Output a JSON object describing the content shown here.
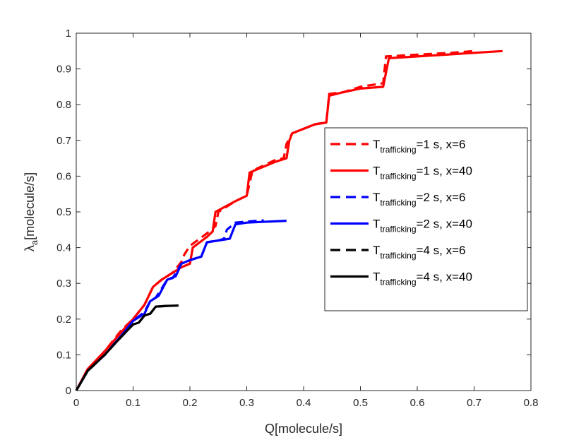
{
  "chart_data": {
    "type": "line",
    "xlabel": "Q[molecule/s]",
    "ylabel": {
      "symbol": "λ",
      "sub": "a",
      "unit": "[molecule/s]"
    },
    "xlim": [
      0,
      0.8
    ],
    "ylim": [
      0,
      1
    ],
    "xticks": [
      "0",
      "0.1",
      "0.2",
      "0.3",
      "0.4",
      "0.5",
      "0.6",
      "0.7",
      "0.8"
    ],
    "yticks": [
      "0",
      "0.1",
      "0.2",
      "0.3",
      "0.4",
      "0.5",
      "0.6",
      "0.7",
      "0.8",
      "0.9",
      "1"
    ],
    "grid": false,
    "legend_position": "right",
    "series": [
      {
        "name": "T_trafficking=1 s, x=6",
        "legend": {
          "main": "T",
          "sub": "trafficking",
          "rest": "=1 s, x=6"
        },
        "color": "#ff0000",
        "style": "dashed",
        "x": [
          0,
          0.02,
          0.05,
          0.08,
          0.1,
          0.12,
          0.135,
          0.15,
          0.17,
          0.185,
          0.19,
          0.2,
          0.23,
          0.245,
          0.25,
          0.28,
          0.3,
          0.31,
          0.35,
          0.365,
          0.37,
          0.38,
          0.42,
          0.44,
          0.445,
          0.47,
          0.5,
          0.54,
          0.545,
          0.6,
          0.66,
          0.7
        ],
        "y": [
          0,
          0.06,
          0.11,
          0.17,
          0.2,
          0.24,
          0.29,
          0.31,
          0.33,
          0.36,
          0.38,
          0.405,
          0.44,
          0.46,
          0.5,
          0.53,
          0.545,
          0.615,
          0.645,
          0.65,
          0.69,
          0.72,
          0.745,
          0.75,
          0.83,
          0.835,
          0.85,
          0.86,
          0.935,
          0.94,
          0.945,
          0.95
        ]
      },
      {
        "name": "T_trafficking=1 s, x=40",
        "legend": {
          "main": "T",
          "sub": "trafficking",
          "rest": "=1 s, x=40"
        },
        "color": "#ff0000",
        "style": "solid",
        "x": [
          0,
          0.02,
          0.05,
          0.08,
          0.1,
          0.12,
          0.135,
          0.15,
          0.17,
          0.185,
          0.2,
          0.205,
          0.23,
          0.24,
          0.245,
          0.28,
          0.3,
          0.305,
          0.35,
          0.37,
          0.375,
          0.38,
          0.42,
          0.44,
          0.445,
          0.47,
          0.5,
          0.54,
          0.55,
          0.6,
          0.65,
          0.7,
          0.75
        ],
        "y": [
          0,
          0.06,
          0.11,
          0.165,
          0.2,
          0.24,
          0.29,
          0.31,
          0.33,
          0.345,
          0.355,
          0.4,
          0.43,
          0.445,
          0.5,
          0.53,
          0.545,
          0.61,
          0.64,
          0.65,
          0.7,
          0.72,
          0.745,
          0.75,
          0.825,
          0.835,
          0.845,
          0.85,
          0.93,
          0.935,
          0.94,
          0.945,
          0.95
        ]
      },
      {
        "name": "T_trafficking=2 s, x=6",
        "legend": {
          "main": "T",
          "sub": "trafficking",
          "rest": "=2 s, x=6"
        },
        "color": "#0000ff",
        "style": "dashed",
        "x": [
          0,
          0.02,
          0.05,
          0.08,
          0.1,
          0.12,
          0.13,
          0.14,
          0.16,
          0.17,
          0.185,
          0.2,
          0.22,
          0.23,
          0.25,
          0.26,
          0.265,
          0.28,
          0.3,
          0.33
        ],
        "y": [
          0,
          0.055,
          0.1,
          0.155,
          0.195,
          0.22,
          0.25,
          0.26,
          0.31,
          0.315,
          0.355,
          0.365,
          0.375,
          0.415,
          0.42,
          0.425,
          0.45,
          0.47,
          0.473,
          0.476
        ]
      },
      {
        "name": "T_trafficking=2 s, x=40",
        "legend": {
          "main": "T",
          "sub": "trafficking",
          "rest": "=2 s, x=40"
        },
        "color": "#0000ff",
        "style": "solid",
        "x": [
          0,
          0.02,
          0.05,
          0.08,
          0.1,
          0.12,
          0.13,
          0.145,
          0.16,
          0.175,
          0.185,
          0.2,
          0.22,
          0.23,
          0.25,
          0.27,
          0.28,
          0.3,
          0.37
        ],
        "y": [
          0,
          0.055,
          0.1,
          0.155,
          0.195,
          0.215,
          0.25,
          0.265,
          0.31,
          0.32,
          0.355,
          0.365,
          0.375,
          0.415,
          0.42,
          0.425,
          0.465,
          0.47,
          0.475
        ]
      },
      {
        "name": "T_trafficking=4 s, x=6",
        "legend": {
          "main": "T",
          "sub": "trafficking",
          "rest": "=4 s, x=6"
        },
        "color": "#000000",
        "style": "dashed",
        "x": [
          0,
          0.02,
          0.05,
          0.07,
          0.085,
          0.1,
          0.11,
          0.12,
          0.13,
          0.14,
          0.16
        ],
        "y": [
          0,
          0.055,
          0.1,
          0.135,
          0.16,
          0.185,
          0.19,
          0.21,
          0.215,
          0.235,
          0.237
        ]
      },
      {
        "name": "T_trafficking=4 s, x=40",
        "legend": {
          "main": "T",
          "sub": "trafficking",
          "rest": "=4 s, x=40"
        },
        "color": "#000000",
        "style": "solid",
        "x": [
          0,
          0.02,
          0.05,
          0.07,
          0.085,
          0.1,
          0.11,
          0.12,
          0.13,
          0.14,
          0.16,
          0.18
        ],
        "y": [
          0,
          0.055,
          0.1,
          0.135,
          0.16,
          0.185,
          0.19,
          0.21,
          0.215,
          0.235,
          0.237,
          0.238
        ]
      }
    ]
  }
}
